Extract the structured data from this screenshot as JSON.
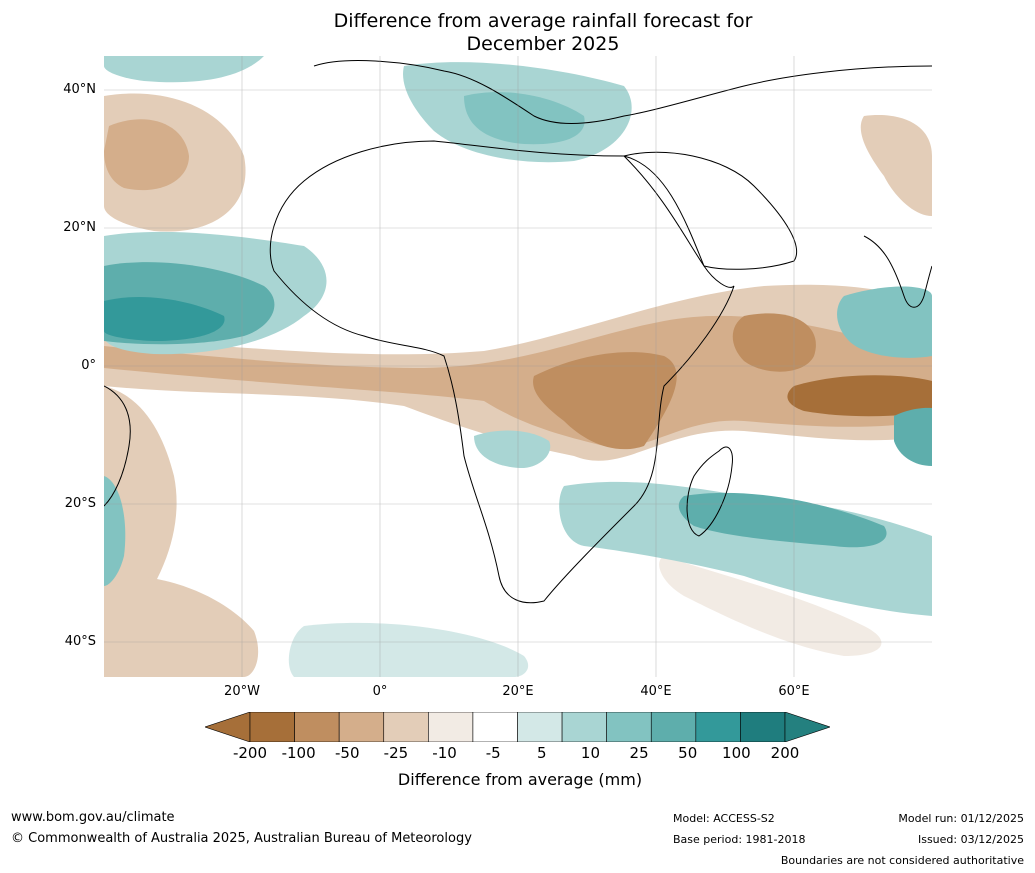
{
  "title": "Difference from average rainfall forecast for December 2025",
  "title_line1": "Difference from average rainfall forecast for",
  "title_line2": "December 2025",
  "axes": {
    "lat_labels": [
      "40°N",
      "20°N",
      "0°",
      "20°S",
      "40°S"
    ],
    "lon_labels": [
      "20°W",
      "0°",
      "20°E",
      "40°E",
      "60°E"
    ]
  },
  "legend": {
    "title": "Difference from average (mm)",
    "ticks": [
      "-200",
      "-100",
      "-50",
      "-25",
      "-10",
      "-5",
      "5",
      "10",
      "25",
      "50",
      "100",
      "200"
    ],
    "colors": [
      "#a66f39",
      "#bf8e60",
      "#d4ae8b",
      "#e3cdb8",
      "#f2ebe4",
      "#ffffff",
      "#d3e8e7",
      "#a9d5d3",
      "#82c3c1",
      "#5eaeac",
      "#33999a",
      "#1f7d7e"
    ],
    "under_color": "#a66f39",
    "over_color": "#24807f"
  },
  "footer": {
    "website": "www.bom.gov.au/climate",
    "copyright": "© Commonwealth of Australia 2025, Australian Bureau of Meteorology",
    "model": "Model: ACCESS-S2",
    "base_period": "Base period: 1981-2018",
    "model_run": "Model run: 01/12/2025",
    "issued": "Issued: 03/12/2025",
    "disclaimer": "Boundaries are not considered authoritative"
  }
}
